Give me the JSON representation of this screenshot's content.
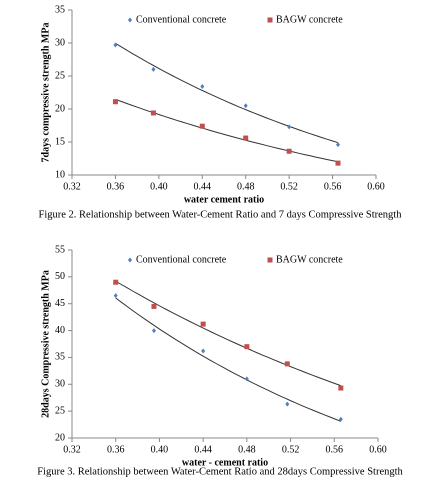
{
  "chart_data": [
    {
      "type": "scatter",
      "caption": "Figure 2. Relationship between Water-Cement Ratio and 7 days Compressive Strength",
      "x_label": "water cement ratio",
      "y_label": "7days compressive strength MPa",
      "xlim": [
        0.32,
        0.6
      ],
      "xticks": [
        0.32,
        0.36,
        {
          "value": 0.4,
          "label": "0.40"
        },
        0.44,
        0.48,
        0.52,
        0.56,
        {
          "value": 0.6,
          "label": "0.60"
        }
      ],
      "ylim": [
        10,
        35
      ],
      "yticks": [
        10,
        15,
        20,
        25,
        30,
        35
      ],
      "series": [
        {
          "name": "Conventional concrete",
          "color": "#4f81bd",
          "marker": "diamond",
          "trendline": "exponential",
          "x": [
            0.36,
            0.395,
            0.44,
            0.48,
            0.52,
            0.565
          ],
          "values": [
            29.7,
            26,
            23.4,
            20.5,
            17.3,
            14.6
          ]
        },
        {
          "name": "BAGW concrete",
          "color": "#c0504d",
          "marker": "square",
          "trendline": "exponential",
          "x": [
            0.36,
            0.395,
            0.44,
            0.48,
            0.52,
            0.565
          ],
          "values": [
            21.1,
            19.4,
            17.4,
            15.6,
            13.6,
            11.8
          ]
        }
      ]
    },
    {
      "type": "scatter",
      "caption": "Figure 3. Relationship between Water-Cement Ratio and 28days Compressive Strength",
      "x_label": "water - cement ratio",
      "y_label": "28days Compressive strength  MPa",
      "xlim": [
        0.32,
        0.6
      ],
      "xticks": [
        0.32,
        0.36,
        {
          "value": 0.4,
          "label": "0.40"
        },
        0.44,
        0.48,
        0.52,
        0.56,
        {
          "value": 0.6,
          "label": "0.60"
        }
      ],
      "ylim": [
        20,
        55
      ],
      "yticks": [
        20,
        25,
        30,
        35,
        40,
        45,
        50,
        55
      ],
      "series": [
        {
          "name": "Conventional concrete",
          "color": "#4f81bd",
          "marker": "diamond",
          "trendline": "exponential",
          "x": [
            0.36,
            0.395,
            0.44,
            0.48,
            0.517,
            0.566
          ],
          "values": [
            46.5,
            40,
            36.2,
            31,
            26.3,
            23.5
          ]
        },
        {
          "name": "BAGW concrete",
          "color": "#c0504d",
          "marker": "square",
          "trendline": "exponential",
          "x": [
            0.36,
            0.395,
            0.44,
            0.48,
            0.517,
            0.566
          ],
          "values": [
            49,
            44.5,
            41.2,
            37,
            33.8,
            29.3
          ]
        }
      ]
    }
  ]
}
